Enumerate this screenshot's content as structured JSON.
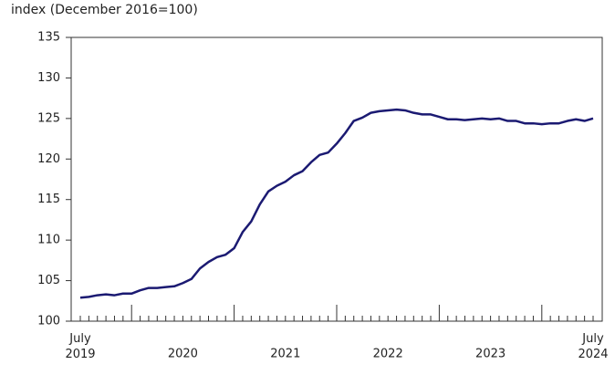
{
  "chart_data": {
    "type": "line",
    "title": "index (December 2016=100)",
    "categories": [
      "July 2019",
      null,
      null,
      null,
      null,
      null,
      null,
      null,
      null,
      null,
      null,
      null,
      "2020",
      null,
      null,
      null,
      null,
      null,
      null,
      null,
      null,
      null,
      null,
      null,
      "2021",
      null,
      null,
      null,
      null,
      null,
      null,
      null,
      null,
      null,
      null,
      null,
      "2022",
      null,
      null,
      null,
      null,
      null,
      null,
      null,
      null,
      null,
      null,
      null,
      "2023",
      null,
      null,
      null,
      null,
      null,
      null,
      null,
      null,
      null,
      null,
      null,
      "July 2024"
    ],
    "series": [
      {
        "name": "index",
        "color": "#1b1a72",
        "values": [
          102.9,
          103.0,
          103.2,
          103.3,
          103.2,
          103.4,
          103.4,
          103.8,
          104.1,
          104.1,
          104.2,
          104.3,
          104.7,
          105.2,
          106.5,
          107.3,
          107.9,
          108.2,
          109.0,
          111.0,
          112.3,
          114.4,
          116.0,
          116.7,
          117.2,
          118.0,
          118.5,
          119.6,
          120.5,
          120.8,
          121.9,
          123.2,
          124.7,
          125.1,
          125.7,
          125.9,
          126.0,
          126.1,
          126.0,
          125.7,
          125.5,
          125.5,
          125.2,
          124.9,
          124.9,
          124.8,
          124.9,
          125.0,
          124.9,
          125.0,
          124.7,
          124.7,
          124.4,
          124.4,
          124.3,
          124.4,
          124.4,
          124.7,
          124.9,
          124.7,
          125.0
        ]
      }
    ],
    "ylim": [
      100,
      135
    ],
    "yticks": [
      100,
      105,
      110,
      115,
      120,
      125,
      130,
      135
    ],
    "grid": false
  }
}
